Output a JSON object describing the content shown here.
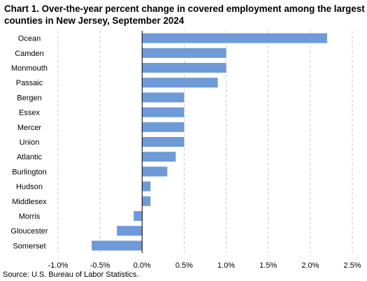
{
  "title_lines": [
    "Chart 1. Over-the-year percent change in covered employment among the largest",
    "counties in New Jersey, September 2024"
  ],
  "source": "Source: U.S. Bureau of Labor Statistics.",
  "colors": {
    "bar": "#6f9ad8",
    "grid": "#c8c8c8",
    "axis": "#000000"
  },
  "chart_data": {
    "type": "bar",
    "orientation": "horizontal",
    "title": "Chart 1. Over-the-year percent change in covered employment among the largest counties in New Jersey, September 2024",
    "xlabel": "",
    "ylabel": "",
    "categories": [
      "Ocean",
      "Camden",
      "Monmouth",
      "Passaic",
      "Bergen",
      "Essex",
      "Mercer",
      "Union",
      "Atlantic",
      "Burlington",
      "Hudson",
      "Middlesex",
      "Morris",
      "Gloucester",
      "Somerset"
    ],
    "values": [
      2.2,
      1.0,
      1.0,
      0.9,
      0.5,
      0.5,
      0.5,
      0.5,
      0.4,
      0.3,
      0.1,
      0.1,
      -0.1,
      -0.3,
      -0.6
    ],
    "xlim": [
      -1.0,
      2.5
    ],
    "xticks": [
      -1.0,
      -0.5,
      0.0,
      0.5,
      1.0,
      1.5,
      2.0,
      2.5
    ],
    "xtick_labels": [
      "-1.0%",
      "-0.5%",
      "0.0%",
      "0.5%",
      "1.0%",
      "1.5%",
      "2.0%",
      "2.5%"
    ],
    "grid": "vertical dashed",
    "legend": "none"
  }
}
